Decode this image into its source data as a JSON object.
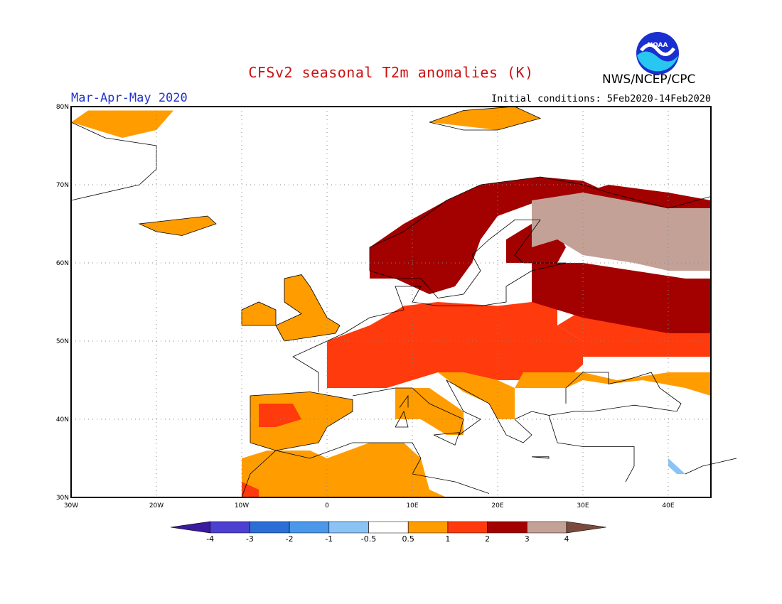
{
  "header": {
    "title": "CFSv2 seasonal T2m anomalies (K)",
    "period": "Mar-Apr-May 2020",
    "initial_conditions": "Initial conditions: 5Feb2020-14Feb2020",
    "organization": "NWS/NCEP/CPC",
    "logo_text": "NOAA"
  },
  "map": {
    "lon_range": [
      -30,
      45
    ],
    "lat_range": [
      30,
      80
    ],
    "lon_ticks": [
      "30W",
      "20W",
      "10W",
      "0",
      "10E",
      "20E",
      "30E",
      "40E"
    ],
    "lat_ticks": [
      "30N",
      "40N",
      "50N",
      "60N",
      "70N",
      "80N"
    ],
    "grid": "dotted"
  },
  "colorbar": {
    "labels": [
      "-4",
      "-3",
      "-2",
      "-1",
      "-0.5",
      "0.5",
      "1",
      "2",
      "3",
      "4"
    ],
    "colors": [
      "#3a1a9e",
      "#4d3fcf",
      "#2b6fd6",
      "#4b97ea",
      "#8bc3f5",
      "#ffffff",
      "#ff9d00",
      "#ff3a0c",
      "#a30000",
      "#c4a197",
      "#7a4a3c"
    ]
  }
}
